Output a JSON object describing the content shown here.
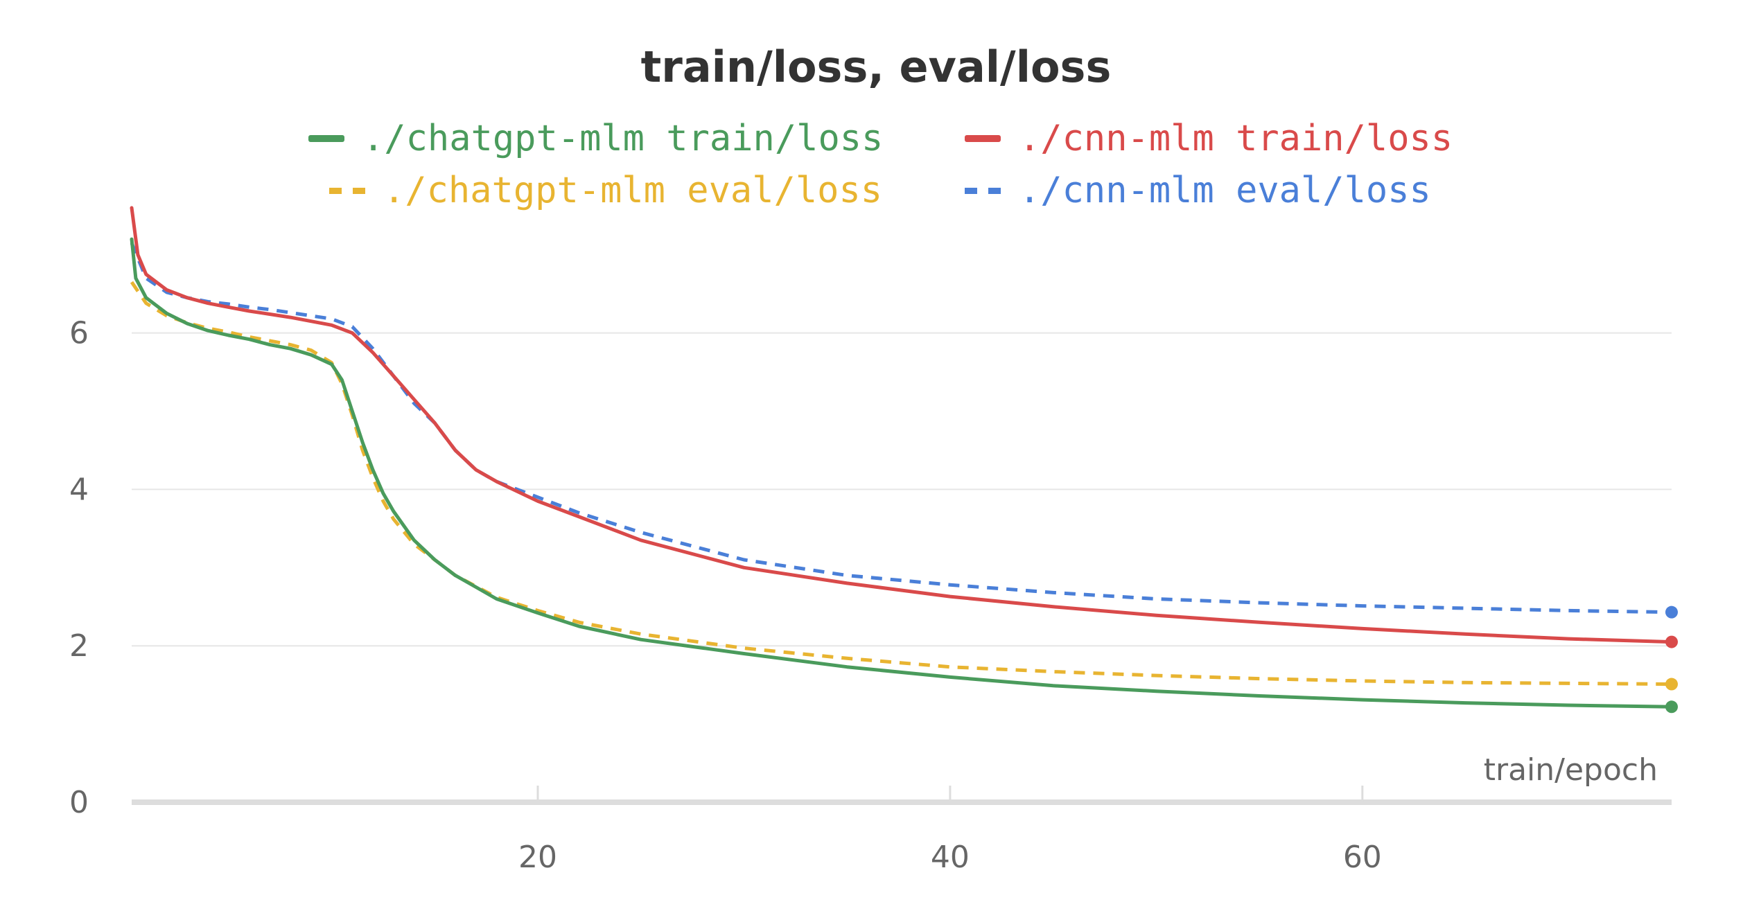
{
  "chart_data": {
    "type": "line",
    "title": "train/loss, eval/loss",
    "xlabel": "train/epoch",
    "ylabel": "",
    "xlim": [
      0.3,
      75
    ],
    "ylim": [
      0,
      7.6
    ],
    "x_ticks": [
      20,
      40,
      60
    ],
    "y_ticks": [
      0,
      2,
      4,
      6
    ],
    "grid": true,
    "legend_position": "top",
    "series": [
      {
        "name": "./chatgpt-mlm train/loss",
        "color": "#4a9b5c",
        "style": "solid",
        "x": [
          0.3,
          0.5,
          1,
          2,
          3,
          4,
          5,
          6,
          7,
          8,
          9,
          10,
          10.5,
          11,
          11.5,
          12,
          12.5,
          13,
          14,
          15,
          16,
          17,
          18,
          20,
          22,
          25,
          30,
          35,
          40,
          45,
          50,
          55,
          60,
          65,
          70,
          75
        ],
        "y": [
          7.2,
          6.7,
          6.45,
          6.25,
          6.12,
          6.03,
          5.97,
          5.92,
          5.85,
          5.8,
          5.72,
          5.6,
          5.4,
          5.0,
          4.6,
          4.25,
          3.95,
          3.72,
          3.35,
          3.1,
          2.9,
          2.75,
          2.6,
          2.42,
          2.25,
          2.08,
          1.9,
          1.73,
          1.6,
          1.49,
          1.42,
          1.36,
          1.31,
          1.27,
          1.24,
          1.22
        ]
      },
      {
        "name": "./cnn-mlm train/loss",
        "color": "#d94a4a",
        "style": "solid",
        "x": [
          0.3,
          0.6,
          1,
          2,
          3,
          4,
          5,
          6,
          7,
          8,
          9,
          10,
          11,
          12,
          13,
          14,
          15,
          16,
          17,
          18,
          20,
          22,
          25,
          30,
          35,
          40,
          45,
          50,
          55,
          60,
          65,
          70,
          75
        ],
        "y": [
          7.6,
          7.0,
          6.75,
          6.55,
          6.45,
          6.38,
          6.33,
          6.28,
          6.24,
          6.2,
          6.15,
          6.1,
          6.0,
          5.75,
          5.45,
          5.15,
          4.85,
          4.5,
          4.25,
          4.1,
          3.85,
          3.65,
          3.35,
          3.0,
          2.8,
          2.63,
          2.5,
          2.39,
          2.3,
          2.22,
          2.15,
          2.09,
          2.05
        ]
      },
      {
        "name": "./chatgpt-mlm eval/loss",
        "color": "#e8b431",
        "style": "dashed",
        "x": [
          0.3,
          1,
          2,
          3,
          4,
          5,
          6,
          7,
          8,
          9,
          10,
          10.5,
          11,
          11.5,
          12,
          12.5,
          13,
          14,
          15,
          16,
          17,
          18,
          20,
          22,
          25,
          30,
          35,
          40,
          45,
          50,
          55,
          60,
          65,
          70,
          75
        ],
        "y": [
          6.65,
          6.38,
          6.22,
          6.13,
          6.06,
          6.01,
          5.95,
          5.9,
          5.85,
          5.78,
          5.62,
          5.35,
          4.95,
          4.5,
          4.15,
          3.85,
          3.62,
          3.3,
          3.1,
          2.9,
          2.76,
          2.62,
          2.45,
          2.3,
          2.15,
          1.97,
          1.84,
          1.73,
          1.67,
          1.62,
          1.58,
          1.55,
          1.53,
          1.52,
          1.51
        ]
      },
      {
        "name": "./cnn-mlm eval/loss",
        "color": "#4a7fd8",
        "style": "dashed",
        "x": [
          0.3,
          1,
          2,
          3,
          4,
          5,
          6,
          7,
          8,
          9,
          10,
          11,
          12,
          13,
          14,
          15,
          16,
          17,
          18,
          20,
          22,
          25,
          30,
          35,
          40,
          45,
          50,
          55,
          60,
          65,
          70,
          75
        ],
        "y": [
          7.15,
          6.7,
          6.52,
          6.45,
          6.4,
          6.37,
          6.33,
          6.3,
          6.26,
          6.22,
          6.18,
          6.08,
          5.8,
          5.45,
          5.1,
          4.85,
          4.5,
          4.25,
          4.1,
          3.9,
          3.7,
          3.45,
          3.1,
          2.9,
          2.78,
          2.68,
          2.6,
          2.55,
          2.51,
          2.48,
          2.45,
          2.43
        ]
      }
    ]
  }
}
